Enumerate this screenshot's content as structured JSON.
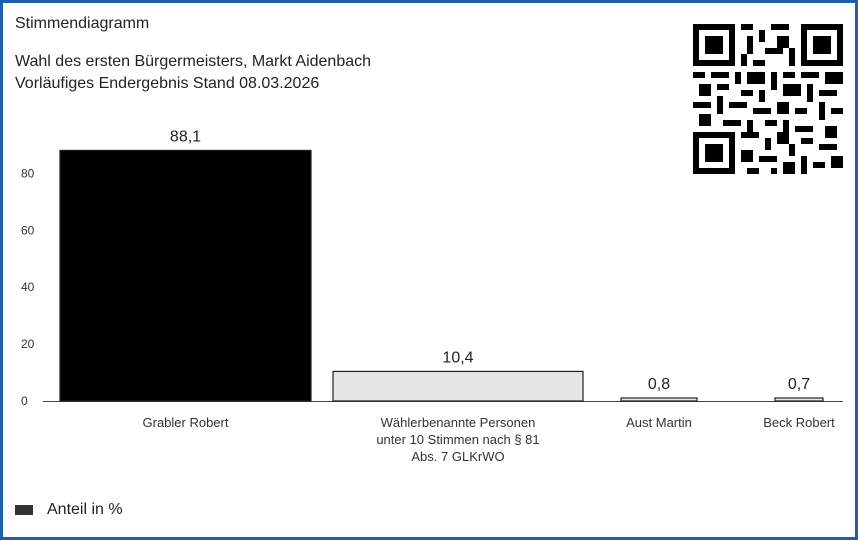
{
  "header": {
    "title": "Stimmendiagramm",
    "subtitle1": "Wahl des ersten Bürgermeisters, Markt Aidenbach",
    "subtitle2": "Vorläufiges Endergebnis Stand 08.03.2026"
  },
  "legend": {
    "label": "Anteil in %",
    "color": "#333333"
  },
  "colors": {
    "frame": "#1f5fa8",
    "bar_winner": "#000000",
    "bar_other": "#e6e6e6"
  },
  "chart_data": {
    "type": "bar",
    "title": "",
    "xlabel": "",
    "ylabel": "",
    "ylim": [
      0,
      90
    ],
    "yticks": [
      0,
      20,
      40,
      60,
      80
    ],
    "categories": [
      [
        "Grabler Robert"
      ],
      [
        "Wählerbenannte Personen",
        "unter 10 Stimmen nach § 81",
        "Abs. 7 GLKrWO"
      ],
      [
        "Aust Martin"
      ],
      [
        "Beck Robert"
      ]
    ],
    "values": [
      88.1,
      10.4,
      0.8,
      0.7
    ],
    "value_labels": [
      "88,1",
      "10,4",
      "0,8",
      "0,7"
    ],
    "grid": false,
    "legend_position": "bottom-left"
  }
}
